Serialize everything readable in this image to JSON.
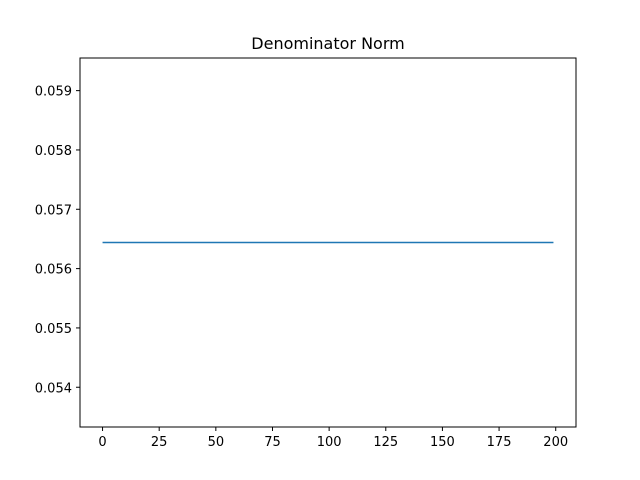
{
  "chart_data": {
    "type": "line",
    "title": "Denominator Norm",
    "xlabel": "",
    "ylabel": "",
    "xlim": [
      -9.95,
      208.95
    ],
    "ylim": [
      0.05333,
      0.05955
    ],
    "x_ticks": [
      0,
      25,
      50,
      75,
      100,
      125,
      150,
      175,
      200
    ],
    "y_ticks": [
      0.054,
      0.055,
      0.056,
      0.057,
      0.058,
      0.059
    ],
    "y_tick_labels": [
      "0.054",
      "0.055",
      "0.056",
      "0.057",
      "0.058",
      "0.059"
    ],
    "grid": false,
    "legend": "none",
    "series": [
      {
        "color": "#1f77b4",
        "x": [
          0,
          199
        ],
        "y": [
          0.05644,
          0.05644
        ]
      }
    ]
  }
}
